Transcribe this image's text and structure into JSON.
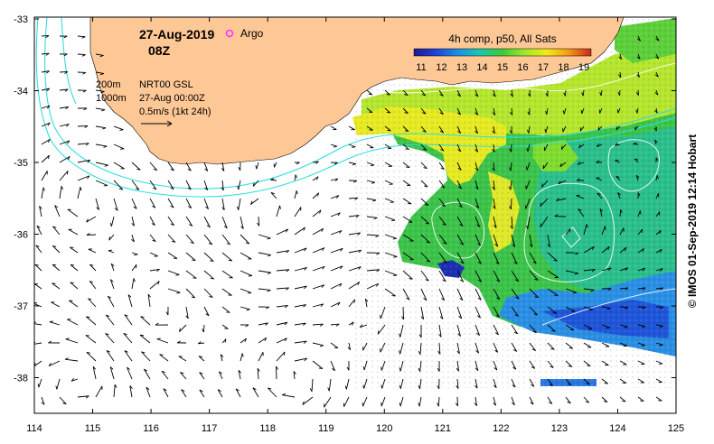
{
  "header": {
    "date": "27-Aug-2019",
    "time": "08Z",
    "argo_label": "Argo",
    "argo_color": "#ff33ff"
  },
  "colorbar": {
    "title": "4h comp, p50, All Sats",
    "ticks": [
      "11",
      "12",
      "13",
      "14",
      "15",
      "16",
      "17",
      "18",
      "19"
    ]
  },
  "legend": {
    "contour_200": "200m",
    "contour_1000": "1000m",
    "product": "NRT00 GSL",
    "valid": "27-Aug 00:00Z",
    "scale": "0.5m/s (1kt 24h)"
  },
  "axes": {
    "x_ticks": [
      "114",
      "115",
      "116",
      "117",
      "118",
      "119",
      "120",
      "121",
      "122",
      "123",
      "124",
      "125"
    ],
    "y_ticks": [
      "-33",
      "-34",
      "-35",
      "-36",
      "-37",
      "-38"
    ]
  },
  "credit": "© IMOS 01-Sep-2019 12:14 Hobart",
  "colors": {
    "land": "#fdc896",
    "bathymetry": "#33dde0",
    "frame": "#000000"
  }
}
